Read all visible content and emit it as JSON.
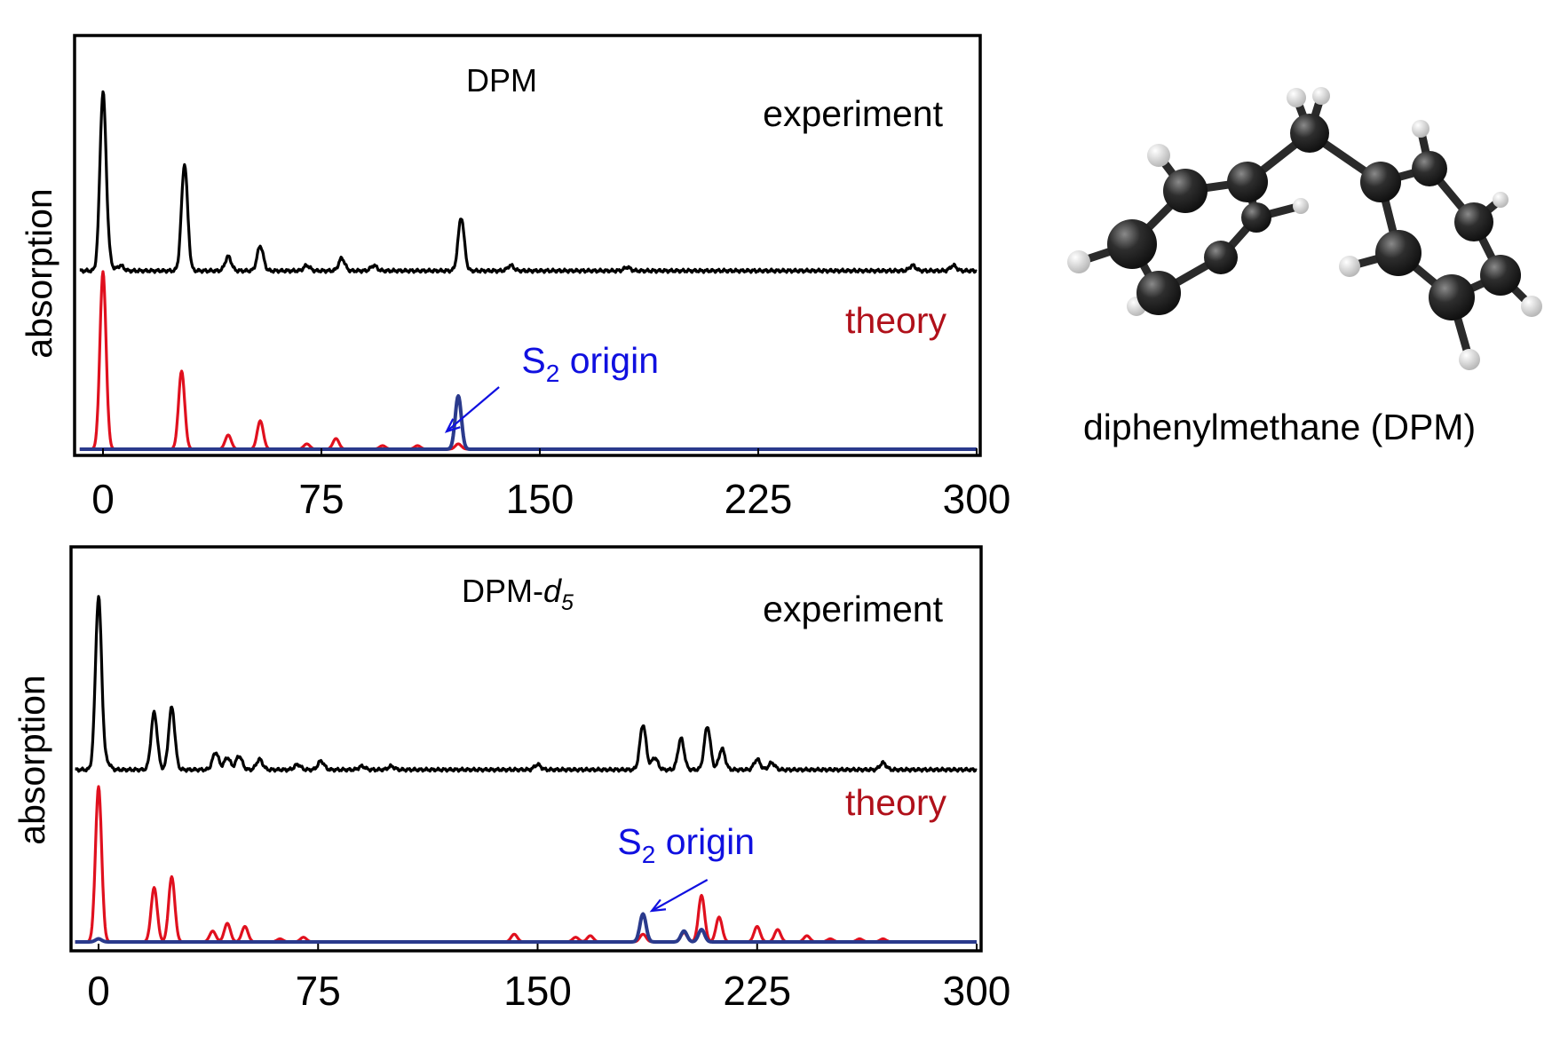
{
  "colors": {
    "experiment": "#000000",
    "theory": "#e0101e",
    "s2": "#2a3a8c",
    "s2_label": "#1010e0",
    "theory_label": "#b0101a"
  },
  "molecule": {
    "caption": "diphenylmethane (DPM)",
    "icon": "molecule-ball-and-stick"
  },
  "chart_data": [
    {
      "type": "line",
      "title": "DPM",
      "ylabel": "absorption",
      "xlim": [
        -8,
        300
      ],
      "xticks": [
        "0",
        "75",
        "150",
        "225",
        "300"
      ],
      "labels": {
        "experiment": "experiment",
        "theory": "theory",
        "s2_main": "S",
        "s2_sub": "2",
        "s2_rest": " origin"
      },
      "annotation_arrow": {
        "from": [
          136,
          0.35
        ],
        "to": [
          118,
          0.1
        ]
      },
      "series": [
        {
          "name": "experiment",
          "kind": "experiment",
          "baseline": 1.0,
          "peaks": [
            [
              0,
              1.0
            ],
            [
              2,
              0.05
            ],
            [
              6,
              0.03
            ],
            [
              28,
              0.6
            ],
            [
              43,
              0.08
            ],
            [
              54,
              0.14
            ],
            [
              70,
              0.03
            ],
            [
              82,
              0.07
            ],
            [
              93,
              0.03
            ],
            [
              123,
              0.3
            ],
            [
              140,
              0.03
            ],
            [
              180,
              0.02
            ],
            [
              278,
              0.03
            ],
            [
              292,
              0.03
            ]
          ]
        },
        {
          "name": "theory",
          "kind": "theory",
          "peaks": [
            [
              0,
              1.0
            ],
            [
              27,
              0.44
            ],
            [
              43,
              0.08
            ],
            [
              54,
              0.16
            ],
            [
              70,
              0.03
            ],
            [
              80,
              0.06
            ],
            [
              96,
              0.02
            ],
            [
              108,
              0.02
            ],
            [
              122,
              0.03
            ]
          ]
        },
        {
          "name": "S2 origin",
          "kind": "s2",
          "peaks": [
            [
              122,
              0.3
            ]
          ]
        }
      ]
    },
    {
      "type": "line",
      "title_main": "DPM-",
      "title_italic": "d",
      "title_sub": "5",
      "ylabel": "absorption",
      "xlim": [
        -8,
        300
      ],
      "xticks": [
        "0",
        "75",
        "150",
        "225",
        "300"
      ],
      "labels": {
        "experiment": "experiment",
        "theory": "theory",
        "s2_main": "S",
        "s2_sub": "2",
        "s2_rest": " origin"
      },
      "annotation_arrow": {
        "from": [
          208,
          0.4
        ],
        "to": [
          189,
          0.2
        ]
      },
      "series": [
        {
          "name": "experiment",
          "kind": "experiment",
          "baseline": 1.0,
          "peaks": [
            [
              0,
              1.0
            ],
            [
              3,
              0.04
            ],
            [
              19,
              0.33
            ],
            [
              25,
              0.36
            ],
            [
              40,
              0.1
            ],
            [
              44,
              0.07
            ],
            [
              48,
              0.08
            ],
            [
              55,
              0.06
            ],
            [
              68,
              0.03
            ],
            [
              76,
              0.05
            ],
            [
              90,
              0.02
            ],
            [
              100,
              0.02
            ],
            [
              150,
              0.03
            ],
            [
              186,
              0.26
            ],
            [
              190,
              0.07
            ],
            [
              199,
              0.18
            ],
            [
              208,
              0.25
            ],
            [
              213,
              0.12
            ],
            [
              225,
              0.06
            ],
            [
              230,
              0.04
            ],
            [
              268,
              0.04
            ]
          ]
        },
        {
          "name": "theory",
          "kind": "theory",
          "peaks": [
            [
              0,
              1.0
            ],
            [
              19,
              0.35
            ],
            [
              25,
              0.42
            ],
            [
              39,
              0.07
            ],
            [
              44,
              0.12
            ],
            [
              50,
              0.1
            ],
            [
              62,
              0.02
            ],
            [
              70,
              0.03
            ],
            [
              142,
              0.05
            ],
            [
              163,
              0.03
            ],
            [
              168,
              0.04
            ],
            [
              186,
              0.05
            ],
            [
              200,
              0.06
            ],
            [
              206,
              0.3
            ],
            [
              212,
              0.16
            ],
            [
              225,
              0.1
            ],
            [
              232,
              0.08
            ],
            [
              242,
              0.04
            ],
            [
              250,
              0.02
            ],
            [
              260,
              0.02
            ],
            [
              268,
              0.02
            ]
          ]
        },
        {
          "name": "S2 origin",
          "kind": "s2",
          "peaks": [
            [
              0,
              0.02
            ],
            [
              186,
              0.18
            ],
            [
              200,
              0.07
            ],
            [
              206,
              0.08
            ]
          ]
        }
      ]
    }
  ]
}
